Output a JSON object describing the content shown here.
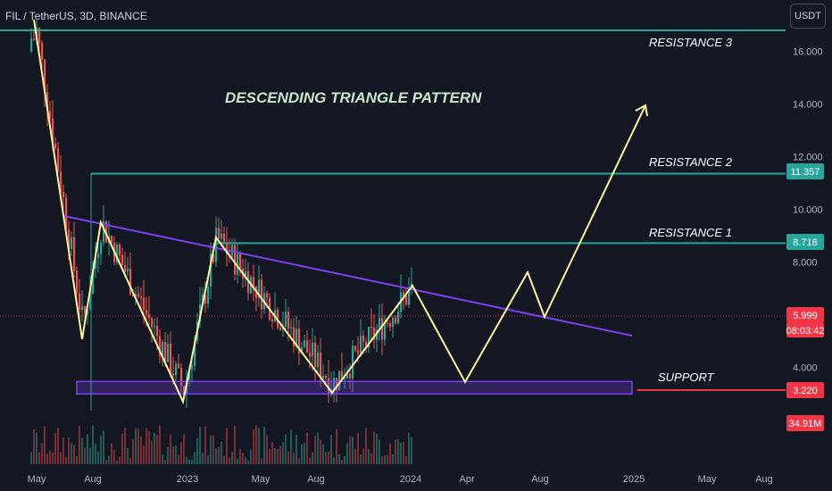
{
  "header": {
    "symbol_line": "FIL / TetherUS, 3D, BINANCE",
    "currency_button": "USDT"
  },
  "chart_data": {
    "type": "line",
    "title": "DESCENDING TRIANGLE PATTERN",
    "y_axis": {
      "ticks": [
        "16.000",
        "14.000",
        "12.000",
        "10.000",
        "8.000",
        "4.000"
      ],
      "ylim": [
        1.3,
        17.3
      ]
    },
    "x_axis": {
      "ticks": [
        "May",
        "Aug",
        "2023",
        "May",
        "Aug",
        "2024",
        "Apr",
        "Aug",
        "2025",
        "May",
        "Aug"
      ]
    },
    "price_labels": [
      {
        "value": "11.357",
        "color": "#26a69a"
      },
      {
        "value": "8.718",
        "color": "#26a69a"
      },
      {
        "value": "5.999",
        "color": "#f23645"
      },
      {
        "value": "08:03:42",
        "color": "#f23645"
      },
      {
        "value": "3.220",
        "color": "#f23645"
      },
      {
        "value": "34.91M",
        "color": "#f23645"
      }
    ],
    "levels": [
      {
        "name": "RESISTANCE 3",
        "value": 16.9
      },
      {
        "name": "RESISTANCE 2",
        "value": 11.357
      },
      {
        "name": "RESISTANCE 1",
        "value": 8.718
      },
      {
        "name": "SUPPORT",
        "value": 3.22
      }
    ],
    "projection_path": [
      [
        0,
        17.2
      ],
      [
        1,
        5.6
      ],
      [
        2,
        9.5
      ],
      [
        3,
        3.1
      ],
      [
        4,
        8.9
      ],
      [
        5,
        3.4
      ],
      [
        6,
        7.0
      ],
      [
        7,
        3.3
      ],
      [
        8,
        7.4
      ],
      [
        9,
        5.9
      ],
      [
        10,
        14.0
      ]
    ],
    "trendline": {
      "start": 9.8,
      "end": 5.4
    },
    "support_zone": [
      3.1,
      3.6
    ],
    "colors": {
      "background": "#131722",
      "levels": "#26a69a",
      "projection": "#fff59d",
      "trendline": "#7e3ff2",
      "candle_up": "#26a69a",
      "candle_down": "#ef5350",
      "price_line": "#f23645"
    }
  }
}
